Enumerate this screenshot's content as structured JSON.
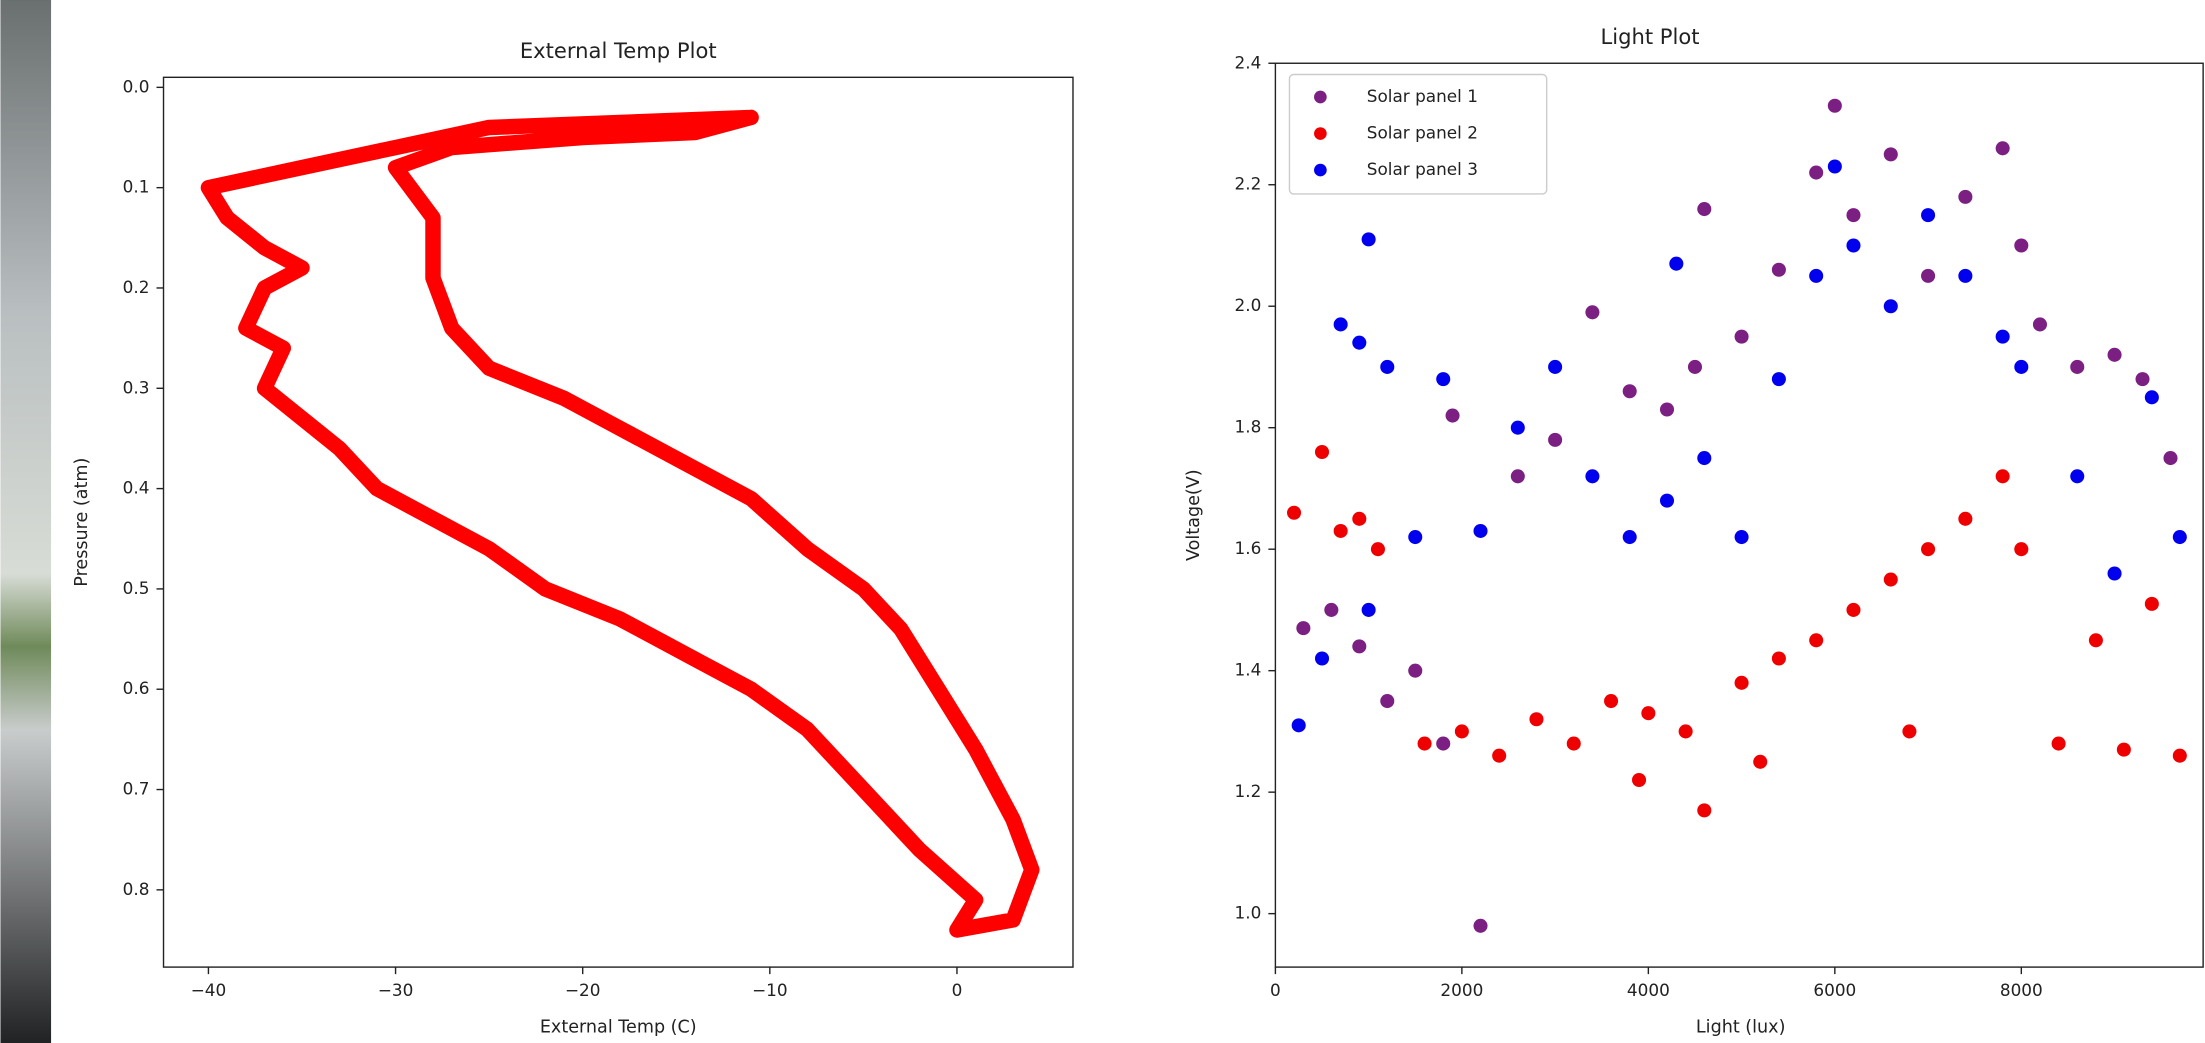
{
  "chart_data": [
    {
      "type": "line",
      "title": "External Temp Plot",
      "xlabel": "External Temp (C)",
      "ylabel": "Pressure (atm)",
      "xlim": [
        -42.4,
        6.2
      ],
      "ylim": [
        -0.01,
        0.877
      ],
      "y_inverted": true,
      "xticks": [
        {
          "value": -40,
          "label": "−40"
        },
        {
          "value": -30,
          "label": "−30"
        },
        {
          "value": -20,
          "label": "−20"
        },
        {
          "value": -10,
          "label": "−10"
        },
        0
      ],
      "yticks": [
        {
          "value": 0,
          "label": "0.0"
        },
        0.1,
        0.2,
        0.3,
        0.4,
        0.5,
        0.6,
        0.7,
        0.8
      ],
      "color": "#ff0000",
      "x": [
        -11,
        -18,
        -25,
        -30,
        -35,
        -40,
        -39,
        -37,
        -35,
        -37,
        -38,
        -36,
        -37,
        -35,
        -33,
        -31,
        -28,
        -25,
        -22,
        -18,
        -14,
        -11,
        -8,
        -5,
        -2,
        1,
        0,
        3,
        4,
        3,
        1,
        -1,
        -3,
        -5,
        -8,
        -11,
        -14,
        -18,
        -21,
        -25,
        -27,
        -28,
        -28,
        -30,
        -27,
        -20,
        -14,
        -11
      ],
      "values": [
        0.03,
        0.035,
        0.04,
        0.06,
        0.08,
        0.1,
        0.13,
        0.16,
        0.18,
        0.2,
        0.24,
        0.26,
        0.3,
        0.33,
        0.36,
        0.4,
        0.43,
        0.46,
        0.5,
        0.53,
        0.57,
        0.6,
        0.64,
        0.7,
        0.76,
        0.81,
        0.84,
        0.83,
        0.78,
        0.73,
        0.66,
        0.6,
        0.54,
        0.5,
        0.46,
        0.41,
        0.38,
        0.34,
        0.31,
        0.28,
        0.24,
        0.19,
        0.13,
        0.08,
        0.06,
        0.05,
        0.045,
        0.03
      ]
    },
    {
      "type": "scatter",
      "title": "Light Plot",
      "xlabel": "Light (lux)",
      "ylabel": "Voltage(V)",
      "xlim": [
        0,
        9950
      ],
      "ylim": [
        0.912,
        2.4
      ],
      "xticks": [
        0,
        2000,
        4000,
        6000,
        8000
      ],
      "yticks": [
        {
          "value": 1.0,
          "label": "1.0"
        },
        1.2,
        1.4,
        1.6,
        1.8,
        {
          "value": 2.0,
          "label": "2.0"
        },
        2.2,
        2.4
      ],
      "legend": "upper left",
      "series": [
        {
          "name": "Solar panel 1",
          "color": "#7b1f82",
          "x": [
            300,
            600,
            900,
            1200,
            1500,
            1800,
            2200,
            2600,
            3000,
            3400,
            3800,
            4200,
            4600,
            5000,
            5400,
            5800,
            6000,
            6200,
            6600,
            7000,
            7400,
            7800,
            8000,
            8200,
            8600,
            9000,
            9300,
            9600,
            4500,
            1900
          ],
          "values": [
            1.47,
            1.5,
            1.44,
            1.35,
            1.4,
            1.28,
            0.98,
            1.72,
            1.78,
            1.99,
            1.86,
            1.83,
            2.16,
            1.95,
            2.06,
            2.22,
            2.33,
            2.15,
            2.25,
            2.05,
            2.18,
            2.26,
            2.1,
            1.97,
            1.9,
            1.92,
            1.88,
            1.75,
            1.9,
            1.82
          ]
        },
        {
          "name": "Solar panel 2",
          "color": "#ee0000",
          "x": [
            200,
            500,
            700,
            900,
            1100,
            1600,
            2000,
            2400,
            2800,
            3200,
            3600,
            4000,
            4400,
            4600,
            5000,
            5400,
            5800,
            6200,
            6600,
            7000,
            7400,
            7800,
            8000,
            8400,
            8800,
            9100,
            9400,
            9700,
            3900,
            5200,
            6800
          ],
          "values": [
            1.66,
            1.76,
            1.63,
            1.65,
            1.6,
            1.28,
            1.3,
            1.26,
            1.32,
            1.28,
            1.35,
            1.33,
            1.3,
            1.17,
            1.38,
            1.42,
            1.45,
            1.5,
            1.55,
            1.6,
            1.65,
            1.72,
            1.6,
            1.28,
            1.45,
            1.27,
            1.51,
            1.26,
            1.22,
            1.25,
            1.3
          ]
        },
        {
          "name": "Solar panel 3",
          "color": "#0000ee",
          "x": [
            250,
            500,
            700,
            900,
            1000,
            1200,
            1500,
            1800,
            2200,
            2600,
            3000,
            3400,
            3800,
            4200,
            4600,
            5000,
            5400,
            5800,
            6000,
            6200,
            6600,
            7000,
            7400,
            7800,
            8000,
            8600,
            9000,
            9400,
            9700,
            1000,
            4300
          ],
          "values": [
            1.31,
            1.42,
            1.97,
            1.94,
            2.11,
            1.9,
            1.62,
            1.88,
            1.63,
            1.8,
            1.9,
            1.72,
            1.62,
            1.68,
            1.75,
            1.62,
            1.88,
            2.05,
            2.23,
            2.1,
            2.0,
            2.15,
            2.05,
            1.95,
            1.9,
            1.72,
            1.56,
            1.85,
            1.62,
            1.5,
            2.07
          ]
        }
      ]
    }
  ]
}
